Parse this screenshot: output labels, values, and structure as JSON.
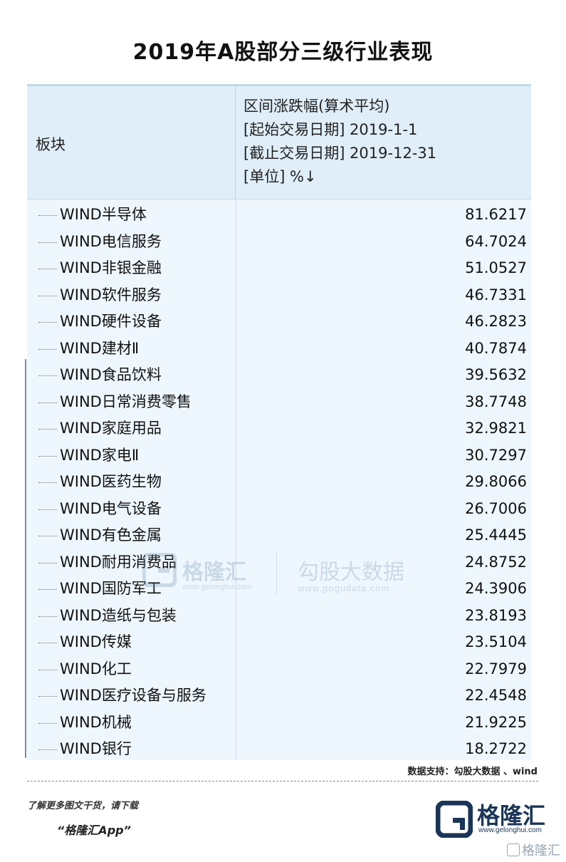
{
  "title": "2019年A股部分三级行业表现",
  "header": {
    "board_label": "板块",
    "metric_lines": [
      "区间涨跌幅(算术平均)",
      "[起始交易日期] 2019-1-1",
      "[截止交易日期] 2019-12-31",
      "[单位] %↓"
    ]
  },
  "rows": [
    {
      "name": "WIND半导体",
      "value": "81.6217"
    },
    {
      "name": "WIND电信服务",
      "value": "64.7024"
    },
    {
      "name": "WIND非银金融",
      "value": "51.0527"
    },
    {
      "name": "WIND软件服务",
      "value": "46.7331"
    },
    {
      "name": "WIND硬件设备",
      "value": "46.2823"
    },
    {
      "name": "WIND建材Ⅱ",
      "value": "40.7874"
    },
    {
      "name": "WIND食品饮料",
      "value": "39.5632"
    },
    {
      "name": "WIND日常消费零售",
      "value": "38.7748"
    },
    {
      "name": "WIND家庭用品",
      "value": "32.9821"
    },
    {
      "name": "WIND家电Ⅱ",
      "value": "30.7297"
    },
    {
      "name": "WIND医药生物",
      "value": "29.8066"
    },
    {
      "name": "WIND电气设备",
      "value": "26.7006"
    },
    {
      "name": "WIND有色金属",
      "value": "25.4445"
    },
    {
      "name": "WIND耐用消费品",
      "value": "24.8752"
    },
    {
      "name": "WIND国防军工",
      "value": "24.3906"
    },
    {
      "name": "WIND造纸与包装",
      "value": "23.8193"
    },
    {
      "name": "WIND传媒",
      "value": "23.5104"
    },
    {
      "name": "WIND化工",
      "value": "22.7979"
    },
    {
      "name": "WIND医疗设备与服务",
      "value": "22.4548"
    },
    {
      "name": "WIND机械",
      "value": "21.9225"
    },
    {
      "name": "WIND银行",
      "value": "18.2722"
    }
  ],
  "watermark": {
    "brand1": "格隆汇",
    "url1": "www.gelonghui.com",
    "brand2": "勾股大数据",
    "url2": "www.gogudata.com"
  },
  "source": "数据支持：勾股大数据 、wind",
  "promo": {
    "line1": "了解更多图文干货，请下载",
    "line2": "“格隆汇App”"
  },
  "brand": {
    "name": "格隆汇",
    "url": "www.gelonghui.com"
  },
  "corner_mark": "格隆汇",
  "colors": {
    "header_bg": "#dfeef8",
    "table_bg": "#eef7fd",
    "brand_navy": "#1a3557"
  }
}
